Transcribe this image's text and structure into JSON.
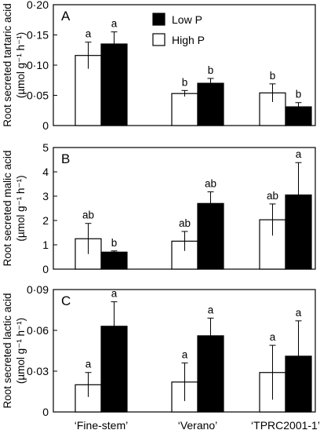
{
  "legend": [
    {
      "name": "Low P",
      "color": "#000000"
    },
    {
      "name": "High P",
      "color": "#ffffff"
    }
  ],
  "categories": [
    "‘Fine-stem’",
    "‘Verano’",
    "‘TPRC2001-1’"
  ],
  "chart_data": [
    {
      "type": "bar",
      "panel_label": "A",
      "ylabel_line1": "Root secreted tartaric acid",
      "ylabel_line2": "(µmol g⁻¹ h⁻¹)",
      "ylim": [
        0,
        0.2
      ],
      "yticks": [
        0,
        0.05,
        0.1,
        0.15,
        0.2
      ],
      "ytick_labels": [
        "0",
        "0·05",
        "0·10",
        "0·15",
        "0·20"
      ],
      "categories": [
        "‘Fine-stem’",
        "‘Verano’",
        "‘TPRC2001-1’"
      ],
      "series": [
        {
          "name": "High P",
          "values": [
            0.116,
            0.053,
            0.054
          ],
          "errors": [
            0.022,
            0.005,
            0.015
          ],
          "letters": [
            "a",
            "b",
            "b"
          ]
        },
        {
          "name": "Low P",
          "values": [
            0.135,
            0.07,
            0.031
          ],
          "errors": [
            0.02,
            0.008,
            0.007
          ],
          "letters": [
            "a",
            "b",
            "b"
          ]
        }
      ],
      "legend_position": "top-center"
    },
    {
      "type": "bar",
      "panel_label": "B",
      "ylabel_line1": "Root secreted malic acid",
      "ylabel_line2": "(µmol g⁻¹ h⁻¹)",
      "ylim": [
        0,
        5
      ],
      "yticks": [
        0,
        1,
        2,
        3,
        4,
        5
      ],
      "ytick_labels": [
        "0",
        "1",
        "2",
        "3",
        "4",
        "5"
      ],
      "categories": [
        "‘Fine-stem’",
        "‘Verano’",
        "‘TPRC2001-1’"
      ],
      "series": [
        {
          "name": "High P",
          "values": [
            1.25,
            1.15,
            2.03
          ],
          "errors": [
            0.63,
            0.4,
            0.65
          ],
          "letters": [
            "ab",
            "ab",
            "ab"
          ]
        },
        {
          "name": "Low P",
          "values": [
            0.7,
            2.7,
            3.05
          ],
          "errors": [
            0.05,
            0.48,
            1.33
          ],
          "letters": [
            "b",
            "ab",
            "a"
          ]
        }
      ]
    },
    {
      "type": "bar",
      "panel_label": "C",
      "ylabel_line1": "Root secreted lactic acid",
      "ylabel_line2": "(µmol g⁻¹ h⁻¹)",
      "ylim": [
        0,
        0.09
      ],
      "yticks": [
        0,
        0.03,
        0.06,
        0.09
      ],
      "ytick_labels": [
        "0",
        "0·03",
        "0·06",
        "0·09"
      ],
      "categories": [
        "‘Fine-stem’",
        "‘Verano’",
        "‘TPRC2001-1’"
      ],
      "series": [
        {
          "name": "High P",
          "values": [
            0.02,
            0.022,
            0.029
          ],
          "errors": [
            0.009,
            0.014,
            0.02
          ],
          "letters": [
            "a",
            "a",
            "a"
          ]
        },
        {
          "name": "Low P",
          "values": [
            0.063,
            0.056,
            0.041
          ],
          "errors": [
            0.018,
            0.013,
            0.026
          ],
          "letters": [
            "a",
            "a",
            "a"
          ]
        }
      ]
    }
  ]
}
